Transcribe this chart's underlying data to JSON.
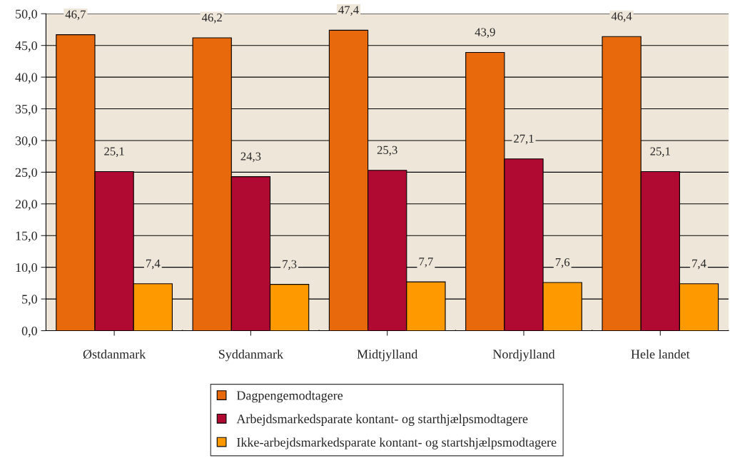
{
  "chart_data": {
    "type": "bar",
    "categories": [
      "Østdanmark",
      "Syddanmark",
      "Midtjylland",
      "Nordjylland",
      "Hele landet"
    ],
    "series": [
      {
        "name": "Dagpengemodtagere",
        "color": "#e8690c",
        "values": [
          46.7,
          46.2,
          47.4,
          43.9,
          46.4
        ],
        "value_labels": [
          "46,7",
          "46,2",
          "47,4",
          "43,9",
          "46,4"
        ]
      },
      {
        "name": "Arbejdsmarkedsparate kontant- og starthjælpsmodtagere",
        "color": "#b00a32",
        "values": [
          25.1,
          24.3,
          25.3,
          27.1,
          25.1
        ],
        "value_labels": [
          "25,1",
          "24,3",
          "25,3",
          "27,1",
          "25,1"
        ]
      },
      {
        "name": "Ikke-arbejdsmarkedsparate kontant- og startshjælpsmodtagere",
        "color": "#ff9900",
        "values": [
          7.4,
          7.3,
          7.7,
          7.6,
          7.4
        ],
        "value_labels": [
          "7,4",
          "7,3",
          "7,7",
          "7,6",
          "7,4"
        ]
      }
    ],
    "ylim": [
      0,
      50
    ],
    "yticks": [
      {
        "value": 0,
        "label": "0,0"
      },
      {
        "value": 5,
        "label": "5,0"
      },
      {
        "value": 10,
        "label": "10,0"
      },
      {
        "value": 15,
        "label": "15,0"
      },
      {
        "value": 20,
        "label": "20,0"
      },
      {
        "value": 25,
        "label": "25,0"
      },
      {
        "value": 30,
        "label": "30,0"
      },
      {
        "value": 35,
        "label": "35,0"
      },
      {
        "value": 40,
        "label": "40,0"
      },
      {
        "value": 45,
        "label": "45,0"
      },
      {
        "value": 50,
        "label": "50,0"
      }
    ],
    "grid": "y",
    "legend": "bottom"
  }
}
